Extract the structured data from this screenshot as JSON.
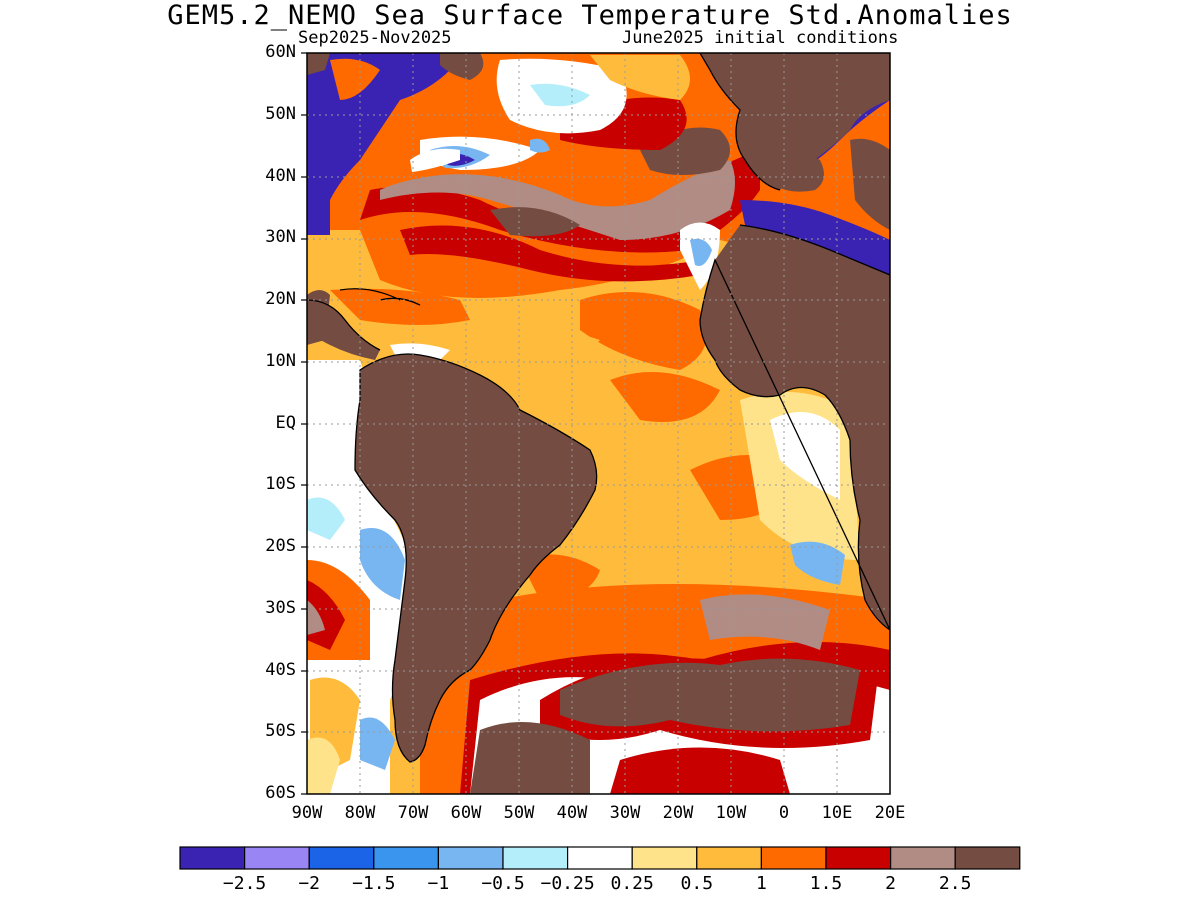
{
  "title": "GEM5.2_NEMO Sea Surface Temperature Std.Anomalies",
  "period": "Sep2025-Nov2025",
  "initial_conditions": "June2025 initial conditions",
  "lat_labels": [
    "60N",
    "50N",
    "40N",
    "30N",
    "20N",
    "10N",
    "EQ",
    "10S",
    "20S",
    "30S",
    "40S",
    "50S",
    "60S"
  ],
  "lon_labels": [
    "90W",
    "80W",
    "70W",
    "60W",
    "50W",
    "40W",
    "30W",
    "20W",
    "10W",
    "0",
    "10E",
    "20E"
  ],
  "colorbar": {
    "colors": [
      "#3a22b3",
      "#9a85f5",
      "#1b64e8",
      "#3a95ee",
      "#78b6f2",
      "#b3eefa",
      "#ffffff",
      "#ffe38a",
      "#ffbc3c",
      "#ff6a00",
      "#c90000",
      "#b08c84",
      "#744c42"
    ],
    "labels": [
      "−2.5",
      "−2",
      "−1.5",
      "−1",
      "−0.5",
      "−0.25",
      "0.25",
      "0.5",
      "1",
      "1.5",
      "2",
      "2.5"
    ]
  },
  "legend_colors": {
    "land": "#744c42",
    "masked": "#3a22b3",
    "ocean_base": "#ffbc3c"
  }
}
